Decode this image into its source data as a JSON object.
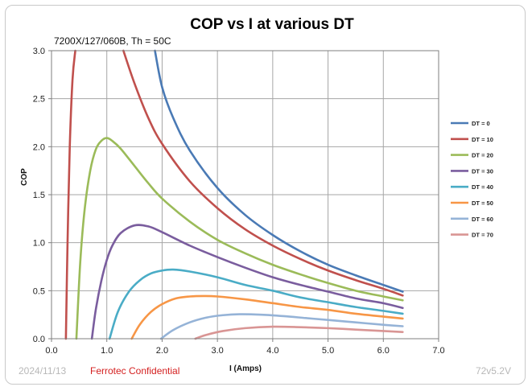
{
  "chart_data": {
    "type": "line",
    "title": "COP vs I at various DT",
    "subtitle": "7200X/127/060B, Th = 50C",
    "xlabel": "I (Amps)",
    "ylabel": "COP",
    "xlim": [
      0.0,
      7.0
    ],
    "ylim": [
      0.0,
      3.0
    ],
    "x_ticks": [
      "0.0",
      "1.0",
      "2.0",
      "3.0",
      "4.0",
      "5.0",
      "6.0",
      "7.0"
    ],
    "y_ticks": [
      "0.0",
      "0.5",
      "1.0",
      "1.5",
      "2.0",
      "2.5",
      "3.0"
    ],
    "grid": true,
    "legend_position": "right",
    "series": [
      {
        "name": "DT = 0",
        "color": "#4a7ab5",
        "x": [
          1.87,
          2.0,
          2.2,
          2.5,
          3.0,
          3.5,
          4.0,
          4.5,
          5.0,
          5.5,
          6.0,
          6.35
        ],
        "y": [
          3.0,
          2.62,
          2.3,
          1.96,
          1.57,
          1.29,
          1.08,
          0.91,
          0.77,
          0.66,
          0.56,
          0.49
        ]
      },
      {
        "name": "DT = 10",
        "color": "#c0504d",
        "x": [
          0.26,
          0.29,
          0.33,
          0.38,
          0.43
        ],
        "y": [
          0.0,
          1.0,
          2.0,
          2.7,
          3.0
        ]
      },
      {
        "name": "DT = 10",
        "color": "#c0504d",
        "x": [
          1.3,
          1.5,
          1.75,
          2.0,
          2.5,
          3.0,
          3.5,
          4.0,
          4.5,
          5.0,
          5.5,
          6.0,
          6.35
        ],
        "y": [
          3.0,
          2.66,
          2.3,
          2.03,
          1.64,
          1.36,
          1.14,
          0.97,
          0.83,
          0.71,
          0.61,
          0.52,
          0.45
        ]
      },
      {
        "name": "DT = 20",
        "color": "#9bbb59",
        "x": [
          0.45,
          0.52,
          0.6,
          0.7,
          0.8,
          0.9,
          1.0,
          1.1,
          1.25,
          1.5,
          1.75,
          2.0,
          2.5,
          3.0,
          3.5,
          4.0,
          4.5,
          5.0,
          5.5,
          6.0,
          6.35
        ],
        "y": [
          0.0,
          0.8,
          1.35,
          1.75,
          1.97,
          2.06,
          2.09,
          2.06,
          1.98,
          1.8,
          1.62,
          1.46,
          1.22,
          1.03,
          0.89,
          0.77,
          0.67,
          0.58,
          0.5,
          0.44,
          0.4
        ]
      },
      {
        "name": "DT = 30",
        "color": "#7a5d9e",
        "x": [
          0.73,
          0.8,
          0.9,
          1.0,
          1.1,
          1.25,
          1.5,
          1.75,
          2.0,
          2.5,
          3.0,
          3.5,
          4.0,
          4.5,
          5.0,
          5.5,
          6.0,
          6.35
        ],
        "y": [
          0.0,
          0.3,
          0.6,
          0.82,
          0.97,
          1.1,
          1.18,
          1.17,
          1.11,
          0.97,
          0.85,
          0.74,
          0.64,
          0.56,
          0.49,
          0.42,
          0.37,
          0.32
        ]
      },
      {
        "name": "DT = 40",
        "color": "#4aacc6",
        "x": [
          1.05,
          1.2,
          1.4,
          1.6,
          1.8,
          2.0,
          2.2,
          2.5,
          3.0,
          3.5,
          4.0,
          4.5,
          5.0,
          5.5,
          6.0,
          6.35
        ],
        "y": [
          0.0,
          0.28,
          0.49,
          0.61,
          0.68,
          0.71,
          0.72,
          0.7,
          0.64,
          0.56,
          0.5,
          0.43,
          0.38,
          0.33,
          0.29,
          0.26
        ]
      },
      {
        "name": "DT = 50",
        "color": "#f79646",
        "x": [
          1.45,
          1.6,
          1.8,
          2.0,
          2.25,
          2.5,
          2.75,
          3.0,
          3.5,
          4.0,
          4.5,
          5.0,
          5.5,
          6.0,
          6.35
        ],
        "y": [
          0.0,
          0.15,
          0.28,
          0.36,
          0.42,
          0.44,
          0.445,
          0.44,
          0.41,
          0.37,
          0.33,
          0.3,
          0.26,
          0.23,
          0.21
        ]
      },
      {
        "name": "DT = 60",
        "color": "#95b3d7",
        "x": [
          1.98,
          2.2,
          2.5,
          2.8,
          3.1,
          3.4,
          3.8,
          4.2,
          4.6,
          5.0,
          5.5,
          6.0,
          6.35
        ],
        "y": [
          0.0,
          0.09,
          0.17,
          0.22,
          0.245,
          0.255,
          0.25,
          0.235,
          0.215,
          0.195,
          0.17,
          0.145,
          0.13
        ]
      },
      {
        "name": "DT = 70",
        "color": "#d99594",
        "x": [
          2.6,
          2.8,
          3.1,
          3.5,
          4.0,
          4.5,
          5.0,
          5.5,
          6.0,
          6.35
        ],
        "y": [
          0.0,
          0.04,
          0.08,
          0.11,
          0.125,
          0.12,
          0.11,
          0.095,
          0.08,
          0.07
        ]
      }
    ],
    "legend": [
      {
        "label": "DT = 0",
        "color": "#4a7ab5"
      },
      {
        "label": "DT = 10",
        "color": "#c0504d"
      },
      {
        "label": "DT = 20",
        "color": "#9bbb59"
      },
      {
        "label": "DT = 30",
        "color": "#7a5d9e"
      },
      {
        "label": "DT = 40",
        "color": "#4aacc6"
      },
      {
        "label": "DT = 50",
        "color": "#f79646"
      },
      {
        "label": "DT = 60",
        "color": "#95b3d7"
      },
      {
        "label": "DT = 70",
        "color": "#d99594"
      }
    ]
  },
  "footer": {
    "date": "2024/11/13",
    "confidential": "Ferrotec Confidential",
    "version": "72v5.2V"
  }
}
